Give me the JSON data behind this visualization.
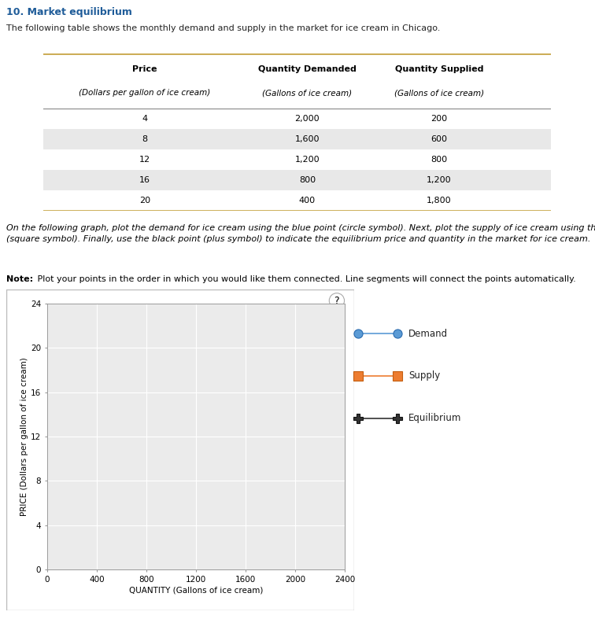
{
  "title": "10. Market equilibrium",
  "subtitle": "The following table shows the monthly demand and supply in the market for ice cream in Chicago.",
  "table_col1": [
    "4",
    "8",
    "12",
    "16",
    "20"
  ],
  "table_col2": [
    "2,000",
    "1,600",
    "1,200",
    "800",
    "400"
  ],
  "table_col3": [
    "200",
    "600",
    "800",
    "1,200",
    "1,800"
  ],
  "instruction_text": "On the following graph, plot the demand for ice cream using the blue point (circle symbol). Next, plot the supply of ice cream using the orange point\n(square symbol). Finally, use the black point (plus symbol) to indicate the equilibrium price and quantity in the market for ice cream.",
  "note_bold": "Note:",
  "note_rest": " Plot your points in the order in which you would like them connected. Line segments will connect the points automatically.",
  "xlabel": "QUANTITY (Gallons of ice cream)",
  "ylabel": "PRICE (Dollars per gallon of ice cream)",
  "xlim": [
    0,
    2400
  ],
  "ylim": [
    0,
    24
  ],
  "xticks": [
    0,
    400,
    800,
    1200,
    1600,
    2000,
    2400
  ],
  "yticks": [
    0,
    4,
    8,
    12,
    16,
    20,
    24
  ],
  "legend_labels": [
    "Demand",
    "Supply",
    "Equilibrium"
  ],
  "demand_color": "#5b9bd5",
  "supply_color": "#ed7d31",
  "equil_color": "#333333",
  "title_color": "#1f5c99",
  "table_border_color": "#c9a84c",
  "table_row_alt_color": "#e8e8e8",
  "plot_bg_color": "#ebebeb",
  "grid_color": "#ffffff",
  "page_bg": "#ffffff"
}
